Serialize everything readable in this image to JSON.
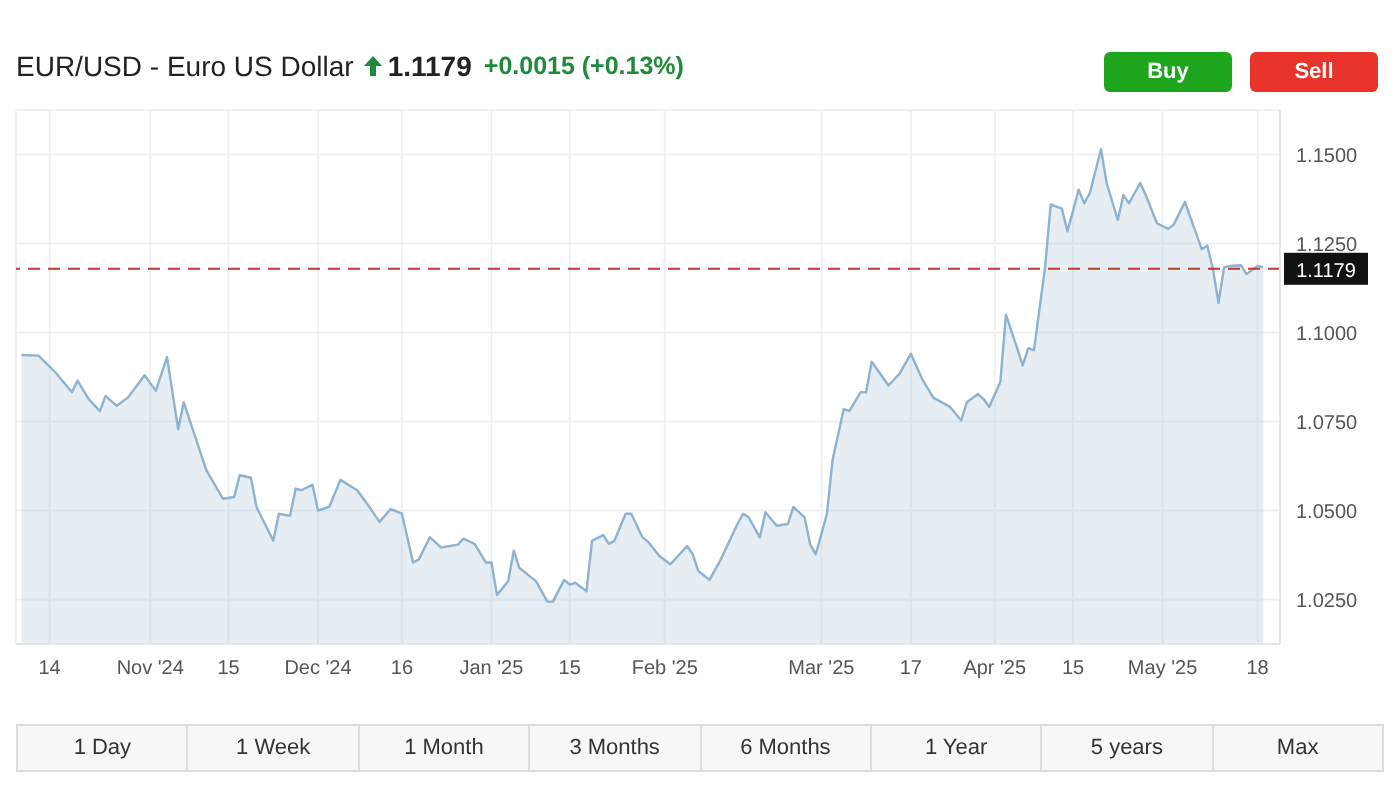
{
  "chart_data": {
    "type": "area",
    "title": "EUR/USD - Euro US Dollar",
    "subtitle": "1.1179 +0.0015 (+0.13%)",
    "annotations": [
      "Buy",
      "Sell",
      "1 Day",
      "1 Week",
      "1 Month",
      "3 Months",
      "6 Months",
      "1 Year",
      "5 years",
      "Max"
    ],
    "x": [
      "2024-10-09",
      "2024-10-12",
      "2024-10-15",
      "2024-10-18",
      "2024-10-19",
      "2024-10-21",
      "2024-10-23",
      "2024-10-24",
      "2024-10-26",
      "2024-10-28",
      "2024-10-31",
      "2024-11-02",
      "2024-11-04",
      "2024-11-06",
      "2024-11-07",
      "2024-11-10",
      "2024-11-11",
      "2024-11-14",
      "2024-11-16",
      "2024-11-17",
      "2024-11-19",
      "2024-11-20",
      "2024-11-23",
      "2024-11-24",
      "2024-11-26",
      "2024-11-27",
      "2024-11-28",
      "2024-11-30",
      "2024-12-01",
      "2024-12-03",
      "2024-12-05",
      "2024-12-08",
      "2024-12-10",
      "2024-12-12",
      "2024-12-14",
      "2024-12-16",
      "2024-12-18",
      "2024-12-19",
      "2024-12-21",
      "2024-12-23",
      "2024-12-26",
      "2024-12-27",
      "2024-12-29",
      "2024-12-31",
      "2025-01-01",
      "2025-01-02",
      "2025-01-04",
      "2025-01-05",
      "2025-01-06",
      "2025-01-09",
      "2025-01-11",
      "2025-01-12",
      "2025-01-14",
      "2025-01-15",
      "2025-01-16",
      "2025-01-18",
      "2025-01-19",
      "2025-01-21",
      "2025-01-22",
      "2025-01-23",
      "2025-01-25",
      "2025-01-26",
      "2025-01-28",
      "2025-01-29",
      "2025-01-31",
      "2025-02-02",
      "2025-02-05",
      "2025-02-06",
      "2025-02-07",
      "2025-02-09",
      "2025-02-11",
      "2025-02-14",
      "2025-02-15",
      "2025-02-16",
      "2025-02-18",
      "2025-02-19",
      "2025-02-21",
      "2025-02-23",
      "2025-02-24",
      "2025-02-26",
      "2025-02-27",
      "2025-02-28",
      "2025-03-02",
      "2025-03-03",
      "2025-03-05",
      "2025-03-06",
      "2025-03-08",
      "2025-03-09",
      "2025-03-10",
      "2025-03-13",
      "2025-03-15",
      "2025-03-17",
      "2025-03-19",
      "2025-03-21",
      "2025-03-24",
      "2025-03-26",
      "2025-03-27",
      "2025-03-29",
      "2025-03-30",
      "2025-03-31",
      "2025-04-02",
      "2025-04-03",
      "2025-04-05",
      "2025-04-06",
      "2025-04-07",
      "2025-04-08",
      "2025-04-10",
      "2025-04-11",
      "2025-04-13",
      "2025-04-14",
      "2025-04-16",
      "2025-04-17",
      "2025-04-18",
      "2025-04-20",
      "2025-04-21",
      "2025-04-23",
      "2025-04-24",
      "2025-04-25",
      "2025-04-27",
      "2025-04-28",
      "2025-04-30",
      "2025-05-02",
      "2025-05-03",
      "2025-05-05",
      "2025-05-08",
      "2025-05-09",
      "2025-05-10",
      "2025-05-11",
      "2025-05-12",
      "2025-05-13",
      "2025-05-15",
      "2025-05-16",
      "2025-05-18",
      "2025-05-19"
    ],
    "series": [
      {
        "color": "#8fb2cf",
        "values": [
          1.0937,
          1.0935,
          1.0889,
          1.0832,
          1.0865,
          1.0813,
          1.0779,
          1.0822,
          1.0794,
          1.0817,
          1.088,
          1.0836,
          1.0931,
          1.0728,
          1.0804,
          1.0662,
          1.0614,
          1.0533,
          1.0538,
          1.0599,
          1.0592,
          1.051,
          1.0415,
          1.0491,
          1.0485,
          1.0561,
          1.0557,
          1.0572,
          1.05,
          1.051,
          1.0586,
          1.0557,
          1.0514,
          1.0468,
          1.0504,
          1.0491,
          1.0354,
          1.0362,
          1.0425,
          1.0396,
          1.0404,
          1.0421,
          1.0406,
          1.0354,
          1.0354,
          1.0263,
          1.0301,
          1.0387,
          1.0339,
          1.0301,
          1.0244,
          1.0244,
          1.0305,
          1.0292,
          1.0297,
          1.0273,
          1.0415,
          1.0431,
          1.0406,
          1.0415,
          1.0491,
          1.0491,
          1.0425,
          1.0412,
          1.0373,
          1.0349,
          1.04,
          1.0377,
          1.033,
          1.0305,
          1.0362,
          1.0462,
          1.0491,
          1.0481,
          1.0424,
          1.0495,
          1.0457,
          1.0462,
          1.051,
          1.0481,
          1.0405,
          1.0377,
          1.0491,
          1.0642,
          1.0785,
          1.0779,
          1.0832,
          1.0832,
          1.0918,
          1.0851,
          1.0885,
          1.094,
          1.087,
          1.0817,
          1.0791,
          1.0753,
          1.0804,
          1.0827,
          1.0813,
          1.0791,
          1.0861,
          1.105,
          1.0956,
          1.0908,
          1.0956,
          1.095,
          1.1183,
          1.136,
          1.1348,
          1.1284,
          1.1401,
          1.1363,
          1.1392,
          1.1515,
          1.142,
          1.1316,
          1.1386,
          1.1363,
          1.142,
          1.1386,
          1.1307,
          1.1291,
          1.1303,
          1.1367,
          1.1234,
          1.1244,
          1.1179,
          1.1083,
          1.1183,
          1.1187,
          1.1189,
          1.1164,
          1.1187,
          1.1183
        ]
      }
    ],
    "xlim": [
      "2024-10-08",
      "2025-05-22"
    ],
    "xticks": [
      {
        "value": "2024-10-14",
        "label": "14"
      },
      {
        "value": "2024-11-01",
        "label": "Nov '24"
      },
      {
        "value": "2024-11-15",
        "label": "15"
      },
      {
        "value": "2024-12-01",
        "label": "Dec '24"
      },
      {
        "value": "2024-12-16",
        "label": "16"
      },
      {
        "value": "2025-01-01",
        "label": "Jan '25"
      },
      {
        "value": "2025-01-15",
        "label": "15"
      },
      {
        "value": "2025-02-01",
        "label": "Feb '25"
      },
      {
        "value": "2025-03-01",
        "label": "Mar '25"
      },
      {
        "value": "2025-03-17",
        "label": "17"
      },
      {
        "value": "2025-04-01",
        "label": "Apr '25"
      },
      {
        "value": "2025-04-15",
        "label": "15"
      },
      {
        "value": "2025-05-01",
        "label": "May '25"
      },
      {
        "value": "2025-05-18",
        "label": "18"
      }
    ],
    "ylim": [
      1.0125,
      1.1625
    ],
    "yticks": [
      {
        "value": 1.025,
        "label": "1.0250"
      },
      {
        "value": 1.05,
        "label": "1.0500"
      },
      {
        "value": 1.075,
        "label": "1.0750"
      },
      {
        "value": 1.1,
        "label": "1.1000"
      },
      {
        "value": 1.125,
        "label": "1.1250"
      },
      {
        "value": 1.15,
        "label": "1.1500"
      }
    ],
    "ref_lines": [
      {
        "axis": "y",
        "value": 1.1179,
        "label": "1.1179",
        "color": "#c0392b",
        "line_style": "dashed"
      }
    ],
    "grid": true,
    "legend": false,
    "marker": "none",
    "line_style": "solid"
  }
}
